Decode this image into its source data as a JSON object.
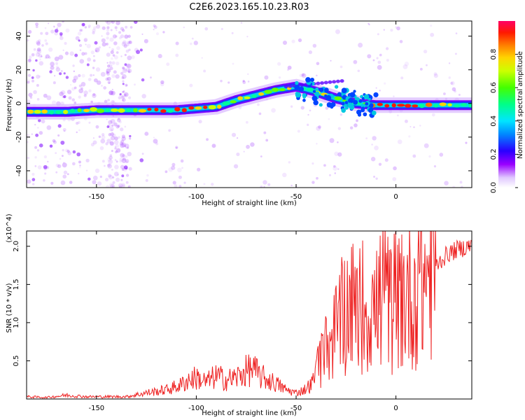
{
  "title": "C2E6.2023.165.10.23.R03",
  "chart_data": [
    {
      "type": "heatmap",
      "name": "spectrogram",
      "xlabel": "Height of straight line (km)",
      "ylabel": "Frequency (Hz)",
      "xlim": [
        -185,
        38
      ],
      "ylim": [
        -50,
        49
      ],
      "xticks": [
        -150,
        -100,
        -50,
        0
      ],
      "yticks": [
        -40,
        -20,
        0,
        20,
        40
      ],
      "colorbar": {
        "label": "Normalized spectral amplitude",
        "range": [
          0.0,
          1.0
        ],
        "ticks": [
          0.0,
          0.2,
          0.4,
          0.6,
          0.8
        ],
        "colormap": "rainbow (white - purple - blue - cyan - green - yellow - orange - red - magenta)"
      },
      "ridge": [
        {
          "x": -185,
          "y": -5
        },
        {
          "x": -165,
          "y": -5
        },
        {
          "x": -150,
          "y": -4
        },
        {
          "x": -130,
          "y": -4
        },
        {
          "x": -110,
          "y": -4
        },
        {
          "x": -100,
          "y": -3
        },
        {
          "x": -90,
          "y": -2
        },
        {
          "x": -80,
          "y": 2
        },
        {
          "x": -70,
          "y": 5
        },
        {
          "x": -60,
          "y": 8
        },
        {
          "x": -50,
          "y": 10
        },
        {
          "x": -40,
          "y": 7
        },
        {
          "x": -30,
          "y": 3
        },
        {
          "x": -20,
          "y": 0
        },
        {
          "x": -10,
          "y": -1
        },
        {
          "x": 0,
          "y": -1
        },
        {
          "x": 10,
          "y": -1
        },
        {
          "x": 20,
          "y": -1
        },
        {
          "x": 30,
          "y": -1
        },
        {
          "x": 38,
          "y": -1
        }
      ],
      "grid": false
    },
    {
      "type": "line",
      "name": "snr",
      "xlabel": "Height of straight line (km)",
      "ylabel": "SNR (10 * v/v)",
      "scale_label": "(x10^4)",
      "xlim": [
        -185,
        38
      ],
      "ylim": [
        0,
        2.2
      ],
      "xticks": [
        -150,
        -100,
        -50,
        0
      ],
      "yticks": [
        0.5,
        1.0,
        1.5,
        2.0
      ],
      "color": "#ee2222",
      "series": [
        {
          "x": [
            -185,
            -175,
            -165,
            -155,
            -145,
            -135,
            -125,
            -115,
            -108,
            -104,
            -100,
            -95,
            -90,
            -85,
            -80,
            -76,
            -72,
            -68,
            -64,
            -60,
            -55,
            -50,
            -46,
            -42,
            -40,
            -38,
            -36,
            -34,
            -32,
            -30,
            -28,
            -26,
            -24,
            -22,
            -20,
            -18,
            -16,
            -14,
            -12,
            -10,
            -8,
            -6,
            -4,
            -2,
            0,
            2,
            4,
            6,
            8,
            10,
            12,
            14,
            16,
            18,
            20,
            22,
            24,
            26,
            28,
            30,
            32,
            34,
            36,
            38
          ],
          "y": [
            0.03,
            0.02,
            0.05,
            0.03,
            0.03,
            0.03,
            0.08,
            0.12,
            0.18,
            0.25,
            0.28,
            0.22,
            0.3,
            0.25,
            0.28,
            0.35,
            0.4,
            0.3,
            0.25,
            0.2,
            0.12,
            0.08,
            0.12,
            0.2,
            0.35,
            0.45,
            0.55,
            0.7,
            0.8,
            0.9,
            1.0,
            1.15,
            1.2,
            1.25,
            1.05,
            1.3,
            1.2,
            1.15,
            1.1,
            1.2,
            1.3,
            1.35,
            1.25,
            1.2,
            1.2,
            1.25,
            1.35,
            1.4,
            1.3,
            1.45,
            1.5,
            1.55,
            1.6,
            1.7,
            1.75,
            1.8,
            1.85,
            1.9,
            1.92,
            1.95,
            1.97,
            1.98,
            2.0,
            2.02
          ]
        }
      ],
      "grid": false
    }
  ]
}
